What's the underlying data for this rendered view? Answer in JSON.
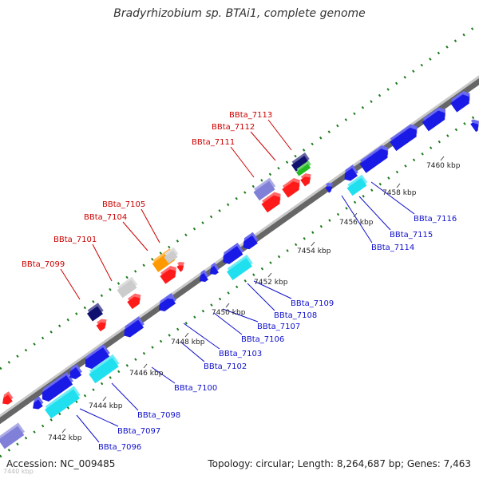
{
  "title": "Bradyrhizobium sp. BTAi1, complete genome",
  "accession": "Accession: NC_009485",
  "summary": "Topology: circular; Length: 8,264,687 bp; Genes: 7,463",
  "corner_label": "7440 kbp",
  "colors": {
    "backbone_dark": "#666666",
    "backbone_light": "#bbbbbb",
    "dots": "#1a7a1a",
    "label_red": "#cc0000",
    "label_blue": "#1010cc",
    "gene_blue": "#1a1ae6",
    "gene_red": "#ff1a1a",
    "gene_cyan": "#20e0f0",
    "gene_lavender": "#8080d8",
    "gene_navy": "#101070",
    "gene_grey": "#cccccc",
    "gene_orange": "#ff9900",
    "gene_green": "#22bb22"
  },
  "ticks": [
    "7442 kbp",
    "7444 kbp",
    "7446 kbp",
    "7448 kbp",
    "7450 kbp",
    "7452 kbp",
    "7454 kbp",
    "7456 kbp",
    "7458 kbp",
    "7460 kbp"
  ],
  "genes_forward": [
    {
      "name": "BBta_7099",
      "color": "navy"
    },
    {
      "name": "BBta_7101",
      "color": "grey"
    },
    {
      "name": "BBta_7104",
      "color": "orange"
    },
    {
      "name": "BBta_7105",
      "color": "grey"
    },
    {
      "name": "BBta_7111",
      "color": "lavender"
    },
    {
      "name": "BBta_7112",
      "color": "navy"
    },
    {
      "name": "BBta_7113",
      "color": "green"
    }
  ],
  "genes_reverse": [
    {
      "name": "BBta_7096",
      "color": "lavender"
    },
    {
      "name": "BBta_7097",
      "color": "cyan"
    },
    {
      "name": "BBta_7098",
      "color": "blue"
    },
    {
      "name": "BBta_7100",
      "color": "cyan"
    },
    {
      "name": "BBta_7102",
      "color": "blue"
    },
    {
      "name": "BBta_7103",
      "color": "blue"
    },
    {
      "name": "BBta_7106",
      "color": "blue"
    },
    {
      "name": "BBta_7107",
      "color": "blue"
    },
    {
      "name": "BBta_7108",
      "color": "cyan"
    },
    {
      "name": "BBta_7109",
      "color": "blue"
    },
    {
      "name": "BBta_7114",
      "color": "blue"
    },
    {
      "name": "BBta_7115",
      "color": "cyan"
    },
    {
      "name": "BBta_7116",
      "color": "blue"
    }
  ]
}
